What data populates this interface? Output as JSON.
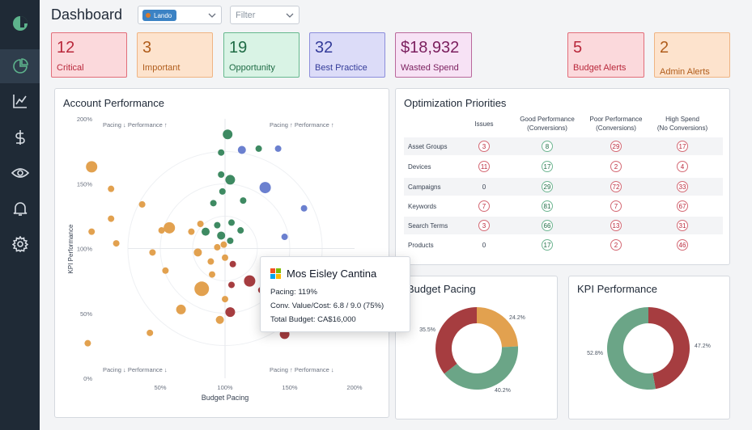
{
  "header": {
    "title": "Dashboard"
  },
  "account_select": {
    "selected": "Lando"
  },
  "filter_select": {
    "placeholder": "Filter"
  },
  "sidebar": {
    "items": [
      "logo-icon",
      "pie-chart-icon",
      "line-chart-icon",
      "dollar-icon",
      "eye-icon",
      "bell-icon",
      "gear-icon"
    ]
  },
  "kpis": {
    "critical": {
      "value": "12",
      "label": "Critical"
    },
    "important": {
      "value": "3",
      "label": "Important"
    },
    "opportunity": {
      "value": "19",
      "label": "Opportunity"
    },
    "best_practice": {
      "value": "32",
      "label": "Best Practice"
    },
    "wasted_spend": {
      "value": "$18,932",
      "label": "Wasted Spend"
    },
    "budget_alerts": {
      "value": "5",
      "label": "Budget Alerts"
    },
    "admin_alerts": {
      "value": "2",
      "label": "Admin Alerts"
    }
  },
  "account_performance": {
    "title": "Account Performance",
    "quadrants": {
      "top_left": "Pacing ↓ Performance ↑",
      "top_right": "Pacing ↑ Performance ↑",
      "bottom_left": "Pacing ↓ Performance ↓",
      "bottom_right": "Pacing ↑ Performance ↓"
    }
  },
  "tooltip": {
    "name": "Mos Eisley Cantina",
    "pacing": "Pacing: 119%",
    "conv": "Conv. Value/Cost: 6.8 / 9.0 (75%)",
    "budget": "Total Budget: CA$16,000"
  },
  "optimization": {
    "title": "Optimization Priorities",
    "columns": [
      "Issues",
      "Good Performance\n(Conversions)",
      "Poor Performance\n(Conversions)",
      "High Spend\n(No Conversions)"
    ],
    "rows": [
      {
        "name": "Asset Groups",
        "values": [
          "3",
          "8",
          "29",
          "17"
        ]
      },
      {
        "name": "Devices",
        "values": [
          "11",
          "17",
          "2",
          "4"
        ]
      },
      {
        "name": "Campaigns",
        "values": [
          "0",
          "29",
          "72",
          "33"
        ]
      },
      {
        "name": "Keywords",
        "values": [
          "7",
          "81",
          "7",
          "67"
        ]
      },
      {
        "name": "Search Terms",
        "values": [
          "3",
          "66",
          "13",
          "31"
        ]
      },
      {
        "name": "Products",
        "values": [
          "0",
          "17",
          "2",
          "46"
        ]
      }
    ]
  },
  "colors": {
    "red": "#a63d40",
    "orange": "#e2a14f",
    "green": "#6ba587",
    "blue": "#6b80cf"
  },
  "chart_data": [
    {
      "type": "scatter",
      "title": "Account Performance",
      "xlabel": "Budget Pacing",
      "ylabel": "KPI Performance",
      "xlim": [
        0,
        200
      ],
      "ylim": [
        0,
        200
      ],
      "xticks": [
        "50%",
        "100%",
        "150%",
        "200%"
      ],
      "yticks": [
        "0%",
        "50%",
        "100%",
        "150%",
        "200%"
      ],
      "series": [
        {
          "name": "green",
          "color": "#3e8a62",
          "points": [
            [
              102,
              188,
              6
            ],
            [
              97,
              174,
              4
            ],
            [
              126,
              177,
              4
            ],
            [
              97,
              157,
              4
            ],
            [
              104,
              153,
              6
            ],
            [
              98,
              144,
              4
            ],
            [
              91,
              135,
              4
            ],
            [
              114,
              137,
              4
            ],
            [
              94,
              118,
              4
            ],
            [
              85,
              113,
              5
            ],
            [
              105,
              120,
              4
            ],
            [
              112,
              114,
              4
            ],
            [
              97,
              110,
              5
            ],
            [
              104,
              106,
              4
            ]
          ]
        },
        {
          "name": "blue",
          "color": "#6b80cf",
          "points": [
            [
              113,
              176,
              5
            ],
            [
              141,
              177,
              4
            ],
            [
              131,
              147,
              7
            ],
            [
              161,
              131,
              4
            ],
            [
              146,
              109,
              4
            ]
          ]
        },
        {
          "name": "orange",
          "color": "#e2a14f",
          "points": [
            [
              -3,
              163,
              7
            ],
            [
              12,
              146,
              4
            ],
            [
              36,
              134,
              4
            ],
            [
              12,
              123,
              4
            ],
            [
              57,
              116,
              7
            ],
            [
              81,
              119,
              4
            ],
            [
              74,
              113,
              4
            ],
            [
              51,
              114,
              4
            ],
            [
              16,
              104,
              4
            ],
            [
              -3,
              113,
              4
            ],
            [
              94,
              101,
              4
            ],
            [
              99,
              103,
              4
            ],
            [
              79,
              97,
              5
            ],
            [
              44,
              97,
              4
            ],
            [
              89,
              90,
              4
            ],
            [
              100,
              93,
              4
            ],
            [
              90,
              80,
              4
            ],
            [
              54,
              83,
              4
            ],
            [
              82,
              69,
              9
            ],
            [
              100,
              61,
              4
            ],
            [
              66,
              53,
              6
            ],
            [
              96,
              45,
              5
            ],
            [
              42,
              35,
              4
            ],
            [
              -6,
              27,
              4
            ]
          ]
        },
        {
          "name": "red",
          "color": "#a63d40",
          "points": [
            [
              106,
              88,
              4
            ],
            [
              105,
              72,
              4
            ],
            [
              119,
              75,
              7
            ],
            [
              104,
              51,
              6
            ],
            [
              128,
              68,
              4
            ],
            [
              135,
              59,
              4
            ],
            [
              146,
              34,
              6
            ]
          ]
        }
      ]
    },
    {
      "type": "pie",
      "title": "Budget Pacing",
      "slices": [
        {
          "label": "24.2%",
          "value": 24.2,
          "color": "#e2a14f"
        },
        {
          "label": "40.2%",
          "value": 40.2,
          "color": "#6ba587"
        },
        {
          "label": "35.5%",
          "value": 35.5,
          "color": "#a63d40"
        }
      ]
    },
    {
      "type": "pie",
      "title": "KPI Performance",
      "slices": [
        {
          "label": "47.2%",
          "value": 47.2,
          "color": "#a63d40"
        },
        {
          "label": "52.8%",
          "value": 52.8,
          "color": "#6ba587"
        }
      ]
    }
  ]
}
